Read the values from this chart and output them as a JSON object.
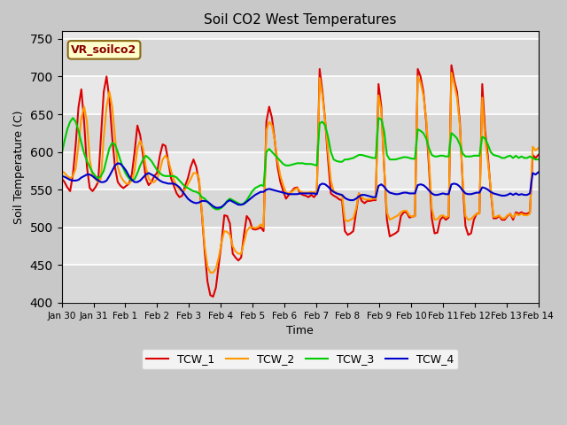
{
  "title": "Soil CO2 West Temperatures",
  "xlabel": "Time",
  "ylabel": "Soil Temperature (C)",
  "ylim": [
    400,
    760
  ],
  "yticks": [
    400,
    450,
    500,
    550,
    600,
    650,
    700,
    750
  ],
  "annotation_text": "VR_soilco2",
  "legend_labels": [
    "TCW_1",
    "TCW_2",
    "TCW_3",
    "TCW_4"
  ],
  "line_colors": [
    "#dd0000",
    "#ff9900",
    "#00cc00",
    "#0000cc"
  ],
  "xtick_labels": [
    "Jan 30",
    "Jan 31",
    "Feb 1",
    "Feb 2",
    "Feb 3",
    "Feb 4",
    "Feb 5",
    "Feb 6",
    "Feb 7",
    "Feb 8",
    "Feb 9",
    "Feb 10",
    "Feb 11",
    "Feb 12",
    "Feb 13",
    "Feb 14"
  ],
  "TCW_1": [
    565,
    560,
    553,
    548,
    570,
    610,
    660,
    683,
    640,
    580,
    552,
    548,
    553,
    560,
    620,
    680,
    700,
    670,
    620,
    580,
    560,
    555,
    552,
    555,
    558,
    570,
    600,
    635,
    622,
    595,
    565,
    556,
    560,
    568,
    572,
    595,
    610,
    608,
    588,
    565,
    555,
    545,
    540,
    542,
    555,
    565,
    580,
    590,
    580,
    560,
    518,
    468,
    428,
    410,
    408,
    420,
    450,
    480,
    516,
    515,
    505,
    465,
    460,
    456,
    460,
    490,
    515,
    510,
    498,
    497,
    498,
    500,
    495,
    640,
    660,
    645,
    615,
    580,
    560,
    548,
    538,
    543,
    548,
    552,
    553,
    545,
    543,
    542,
    540,
    543,
    540,
    545,
    710,
    680,
    640,
    590,
    545,
    542,
    540,
    537,
    536,
    495,
    490,
    492,
    495,
    520,
    545,
    535,
    532,
    535,
    535,
    536,
    536,
    690,
    660,
    580,
    510,
    488,
    490,
    492,
    495,
    515,
    520,
    520,
    513,
    514,
    515,
    710,
    700,
    680,
    640,
    580,
    512,
    492,
    493,
    510,
    514,
    510,
    513,
    715,
    695,
    680,
    640,
    560,
    502,
    490,
    492,
    510,
    518,
    519,
    690,
    628,
    595,
    550,
    512,
    512,
    515,
    510,
    510,
    515,
    518,
    510,
    520,
    518,
    520,
    518,
    518,
    520,
    596,
    592,
    596
  ],
  "TCW_2": [
    575,
    572,
    568,
    565,
    568,
    578,
    610,
    645,
    660,
    640,
    590,
    568,
    564,
    560,
    565,
    620,
    660,
    680,
    660,
    620,
    580,
    568,
    562,
    558,
    558,
    562,
    575,
    605,
    615,
    605,
    580,
    565,
    560,
    560,
    564,
    575,
    590,
    595,
    590,
    575,
    563,
    555,
    550,
    548,
    550,
    557,
    564,
    572,
    572,
    565,
    520,
    475,
    448,
    440,
    440,
    445,
    460,
    480,
    495,
    494,
    490,
    475,
    468,
    465,
    465,
    480,
    495,
    500,
    500,
    499,
    500,
    504,
    500,
    628,
    640,
    635,
    615,
    588,
    568,
    556,
    546,
    545,
    547,
    550,
    552,
    548,
    546,
    546,
    546,
    547,
    546,
    548,
    698,
    675,
    640,
    600,
    562,
    548,
    546,
    543,
    542,
    510,
    508,
    510,
    512,
    525,
    545,
    540,
    537,
    537,
    537,
    538,
    538,
    675,
    655,
    580,
    520,
    510,
    512,
    514,
    516,
    520,
    522,
    522,
    516,
    514,
    515,
    700,
    692,
    675,
    645,
    590,
    525,
    510,
    511,
    515,
    516,
    513,
    515,
    705,
    690,
    672,
    635,
    565,
    515,
    510,
    511,
    515,
    518,
    518,
    672,
    618,
    588,
    552,
    514,
    514,
    516,
    512,
    512,
    516,
    518,
    513,
    518,
    516,
    518,
    516,
    516,
    518,
    607,
    602,
    605
  ],
  "TCW_3": [
    597,
    615,
    630,
    640,
    645,
    640,
    628,
    612,
    598,
    588,
    580,
    573,
    568,
    565,
    568,
    575,
    590,
    605,
    612,
    610,
    600,
    588,
    578,
    570,
    565,
    562,
    564,
    572,
    582,
    590,
    595,
    592,
    588,
    582,
    576,
    572,
    569,
    568,
    568,
    568,
    568,
    566,
    562,
    558,
    554,
    552,
    550,
    548,
    547,
    545,
    540,
    538,
    534,
    530,
    526,
    524,
    524,
    526,
    530,
    535,
    538,
    536,
    534,
    532,
    530,
    532,
    536,
    542,
    548,
    552,
    554,
    556,
    555,
    600,
    604,
    600,
    596,
    592,
    588,
    584,
    582,
    582,
    583,
    584,
    585,
    585,
    585,
    584,
    584,
    584,
    583,
    582,
    638,
    640,
    635,
    620,
    600,
    590,
    588,
    587,
    587,
    590,
    590,
    591,
    592,
    594,
    596,
    596,
    595,
    594,
    593,
    592,
    592,
    645,
    643,
    628,
    596,
    590,
    590,
    590,
    591,
    592,
    593,
    593,
    592,
    591,
    591,
    630,
    628,
    625,
    618,
    605,
    596,
    594,
    594,
    595,
    595,
    594,
    594,
    625,
    622,
    618,
    610,
    598,
    594,
    594,
    594,
    595,
    595,
    595,
    620,
    618,
    610,
    600,
    596,
    595,
    594,
    592,
    592,
    594,
    595,
    592,
    595,
    592,
    594,
    592,
    592,
    594,
    592,
    590,
    590
  ],
  "TCW_4": [
    568,
    567,
    565,
    563,
    562,
    562,
    563,
    566,
    568,
    570,
    570,
    568,
    565,
    562,
    560,
    560,
    562,
    568,
    575,
    582,
    585,
    584,
    580,
    575,
    568,
    563,
    560,
    560,
    562,
    566,
    570,
    572,
    570,
    568,
    565,
    562,
    560,
    559,
    558,
    558,
    558,
    556,
    553,
    548,
    543,
    538,
    535,
    533,
    532,
    533,
    535,
    535,
    534,
    531,
    528,
    526,
    526,
    527,
    530,
    534,
    536,
    534,
    532,
    530,
    530,
    531,
    534,
    537,
    540,
    543,
    545,
    547,
    547,
    550,
    551,
    550,
    549,
    548,
    547,
    546,
    545,
    544,
    544,
    544,
    544,
    545,
    545,
    545,
    545,
    545,
    545,
    544,
    556,
    558,
    557,
    554,
    550,
    547,
    545,
    544,
    543,
    539,
    537,
    536,
    536,
    538,
    541,
    543,
    543,
    542,
    541,
    540,
    540,
    555,
    557,
    554,
    549,
    546,
    545,
    544,
    544,
    545,
    546,
    546,
    545,
    545,
    545,
    556,
    557,
    556,
    553,
    549,
    545,
    543,
    543,
    544,
    545,
    544,
    544,
    557,
    558,
    557,
    554,
    549,
    545,
    544,
    544,
    545,
    546,
    546,
    553,
    552,
    550,
    547,
    545,
    544,
    543,
    542,
    542,
    543,
    545,
    543,
    545,
    543,
    544,
    543,
    543,
    545,
    572,
    570,
    573
  ]
}
